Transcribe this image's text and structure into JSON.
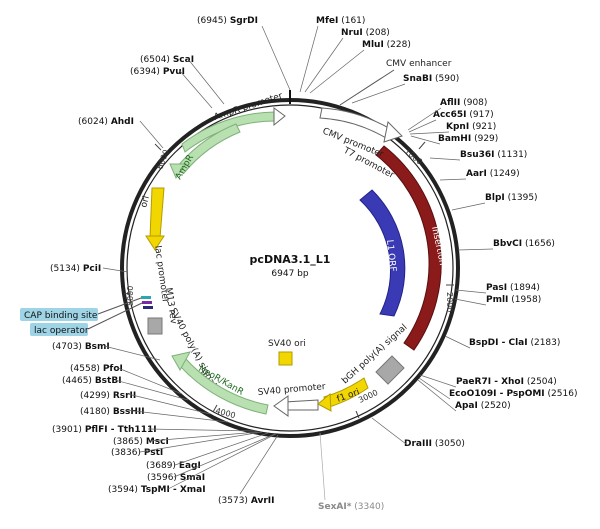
{
  "plasmid": {
    "name": "pcDNA3.1_L1",
    "size_label": "6947 bp"
  },
  "ticks": [
    "1000",
    "2000",
    "3000",
    "4000",
    "5000",
    "6000"
  ],
  "features": {
    "cmv_enhancer": "CMV enhancer",
    "cmv_promoter": "CMV promoter",
    "t7_promoter": "T7 promoter",
    "insertion": "Insertion",
    "l1_orf": "L1 ORF",
    "bgh_polya": "bGH poly(A) signal",
    "f1_ori": "f1 ori",
    "sv40_promoter": "SV40 promoter",
    "sv40_ori": "SV40 ori",
    "neor_kanr": "NeoR/KanR",
    "sv40_polya": "SV40 poly(A) signal",
    "m13_rev": "M13 rev",
    "lac_promoter": "lac promoter",
    "ori": "ori",
    "ampr": "AmpR",
    "ampr_promoter": "AmpR promoter",
    "cap_binding_site": "CAP binding site",
    "lac_operator": "lac operator"
  },
  "sites": [
    {
      "name": "SgrDI",
      "pos": "(6945)"
    },
    {
      "name": "MfeI",
      "pos": "(161)"
    },
    {
      "name": "NruI",
      "pos": "(208)"
    },
    {
      "name": "MluI",
      "pos": "(228)"
    },
    {
      "name": "SnaBI",
      "pos": "(590)"
    },
    {
      "name": "AflII",
      "pos": "(908)"
    },
    {
      "name": "Acc65I",
      "pos": "(917)"
    },
    {
      "name": "KpnI",
      "pos": "(921)"
    },
    {
      "name": "BamHI",
      "pos": "(929)"
    },
    {
      "name": "Bsu36I",
      "pos": "(1131)"
    },
    {
      "name": "AarI",
      "pos": "(1249)"
    },
    {
      "name": "BlpI",
      "pos": "(1395)"
    },
    {
      "name": "BbvCI",
      "pos": "(1656)"
    },
    {
      "name": "PasI",
      "pos": "(1894)"
    },
    {
      "name": "PmlI",
      "pos": "(1958)"
    },
    {
      "name": "BspDI - ClaI",
      "pos": "(2183)"
    },
    {
      "name": "PaeR7I - XhoI",
      "pos": "(2504)"
    },
    {
      "name": "EcoO109I - PspOMI",
      "pos": "(2516)"
    },
    {
      "name": "ApaI",
      "pos": "(2520)"
    },
    {
      "name": "DraIII",
      "pos": "(3050)"
    },
    {
      "name": "SexAI*",
      "pos": "(3340)"
    },
    {
      "name": "AvrII",
      "pos": "(3573)"
    },
    {
      "name": "TspMI - XmaI",
      "pos": "(3594)"
    },
    {
      "name": "SmaI",
      "pos": "(3596)"
    },
    {
      "name": "EagI",
      "pos": "(3689)"
    },
    {
      "name": "PstI",
      "pos": "(3836)"
    },
    {
      "name": "MscI",
      "pos": "(3865)"
    },
    {
      "name": "PflFI - Tth111I",
      "pos": "(3901)"
    },
    {
      "name": "BssHII",
      "pos": "(4180)"
    },
    {
      "name": "RsrII",
      "pos": "(4299)"
    },
    {
      "name": "BstBI",
      "pos": "(4465)"
    },
    {
      "name": "PfoI",
      "pos": "(4558)"
    },
    {
      "name": "BsmI",
      "pos": "(4703)"
    },
    {
      "name": "PciI",
      "pos": "(5134)"
    },
    {
      "name": "AhdI",
      "pos": "(6024)"
    },
    {
      "name": "PvuI",
      "pos": "(6394)"
    },
    {
      "name": "ScaI",
      "pos": "(6504)"
    }
  ],
  "colors": {
    "backbone": "#222222",
    "insertion": "#8b1a1a",
    "orf": "#3a3ab4",
    "green_feature": "#b8e0b0",
    "yellow_feature": "#f2d600",
    "gray_feature": "#a8a8a8",
    "highlight": "#9ed4e6"
  }
}
